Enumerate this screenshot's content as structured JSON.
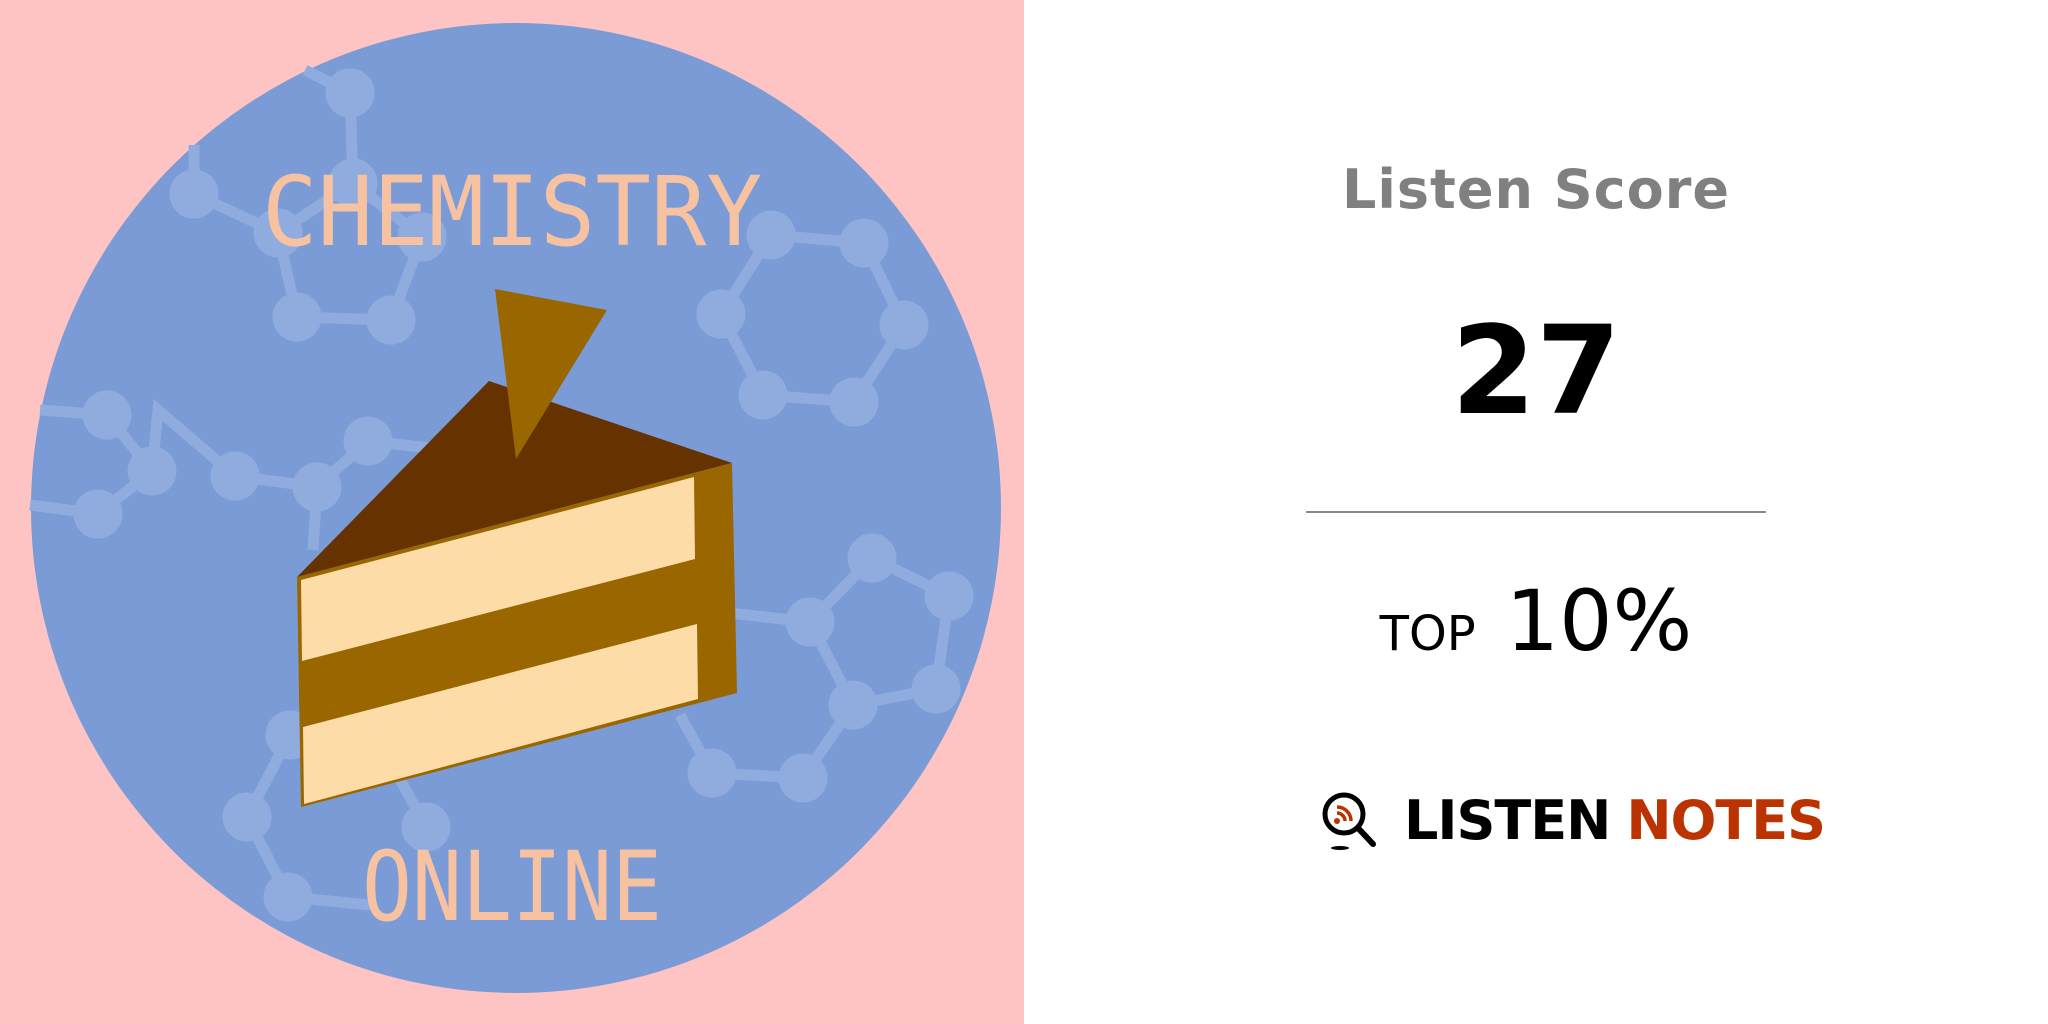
{
  "artwork": {
    "title_top": "CHEMISTRY",
    "title_bottom": "ONLINE",
    "colors": {
      "background": "#fec4c4",
      "circle": "#7a9bd5",
      "molecule": "#90acdf",
      "lettering": "#f7c2a2",
      "cake_top": "#663300",
      "cake_side": "#996600",
      "cream": "#fddca8"
    }
  },
  "score_panel": {
    "title": "Listen Score",
    "score": "27",
    "rank_label": "TOP",
    "rank_value": "10%"
  },
  "brand": {
    "word1": "LISTEN",
    "word2": "NOTES",
    "icon": "magnifier-rss-icon",
    "accent": "#bb3300"
  }
}
